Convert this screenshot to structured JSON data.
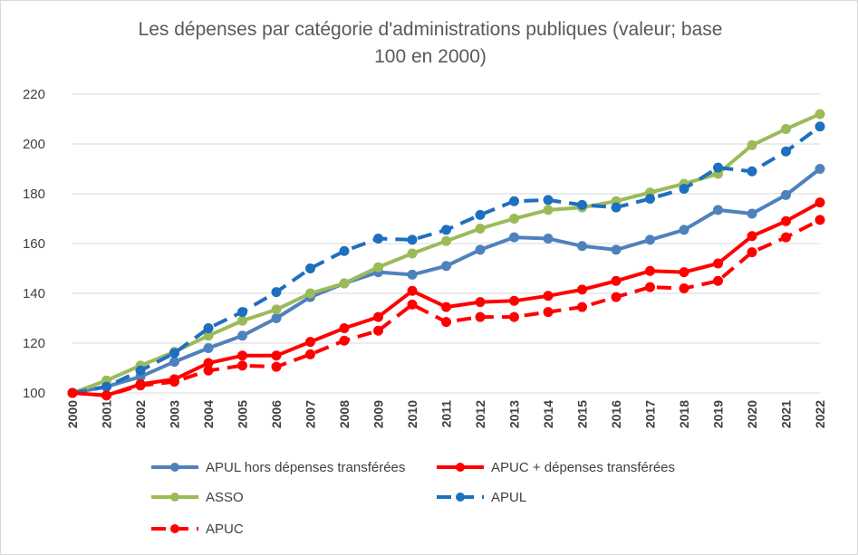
{
  "chart_data": {
    "type": "line",
    "title": "Les dépenses par catégorie d'administrations publiques (valeur; base 100 en 2000)",
    "title_lines": [
      "Les dépenses par catégorie d'administrations publiques (valeur; base",
      "100 en 2000)"
    ],
    "xlabel": "",
    "ylabel": "",
    "ylim": [
      100,
      220
    ],
    "yticks": [
      "100",
      "120",
      "140",
      "160",
      "180",
      "200",
      "220"
    ],
    "grid": "horizontal",
    "legend_position": "bottom",
    "x": [
      "2000",
      "2001",
      "2002",
      "2003",
      "2004",
      "2005",
      "2006",
      "2007",
      "2008",
      "2009",
      "2010",
      "2011",
      "2012",
      "2013",
      "2014",
      "2015",
      "2016",
      "2017",
      "2018",
      "2019",
      "2020",
      "2021",
      "2022"
    ],
    "series": [
      {
        "name": "APUL hors dépenses transférées",
        "color": "#4f81bd",
        "style": "solid",
        "values": [
          100,
          102.5,
          106.5,
          112.5,
          118,
          123,
          130,
          138.5,
          144,
          148.5,
          147.5,
          151,
          157.5,
          162.5,
          162,
          159,
          157.5,
          161.5,
          165.5,
          173.5,
          172,
          179.5,
          190
        ]
      },
      {
        "name": "APUC + dépenses transférées",
        "color": "#ff0000",
        "style": "solid",
        "values": [
          100,
          99,
          103.5,
          105.5,
          112,
          115,
          115,
          120.5,
          126,
          130.5,
          141,
          134.5,
          136.5,
          137,
          139,
          141.5,
          145,
          149,
          148.5,
          152,
          163,
          169,
          176.5
        ]
      },
      {
        "name": "ASSO",
        "color": "#9bbb59",
        "style": "solid",
        "values": [
          100,
          105,
          111,
          116.5,
          123,
          129,
          133.5,
          140,
          144,
          150.5,
          156,
          161,
          166,
          170,
          173.5,
          174.5,
          177,
          180.5,
          184,
          188,
          199.5,
          206,
          212
        ]
      },
      {
        "name": "APUL",
        "color": "#1f6fbf",
        "style": "dashed",
        "values": [
          100,
          102.5,
          109,
          116,
          126,
          132.5,
          140.5,
          150,
          157,
          162,
          161.5,
          165.5,
          171.5,
          177,
          177.5,
          175.5,
          174.5,
          178,
          182,
          190.5,
          189,
          197,
          207
        ]
      },
      {
        "name": "APUC",
        "color": "#ff0000",
        "style": "dashed",
        "values": [
          100,
          99,
          103,
          104.5,
          109,
          111,
          110.5,
          115.5,
          121,
          125,
          135.5,
          128.5,
          130.5,
          130.5,
          132.5,
          134.5,
          138.5,
          142.5,
          142,
          145,
          156.5,
          162.5,
          169.5
        ]
      }
    ]
  }
}
